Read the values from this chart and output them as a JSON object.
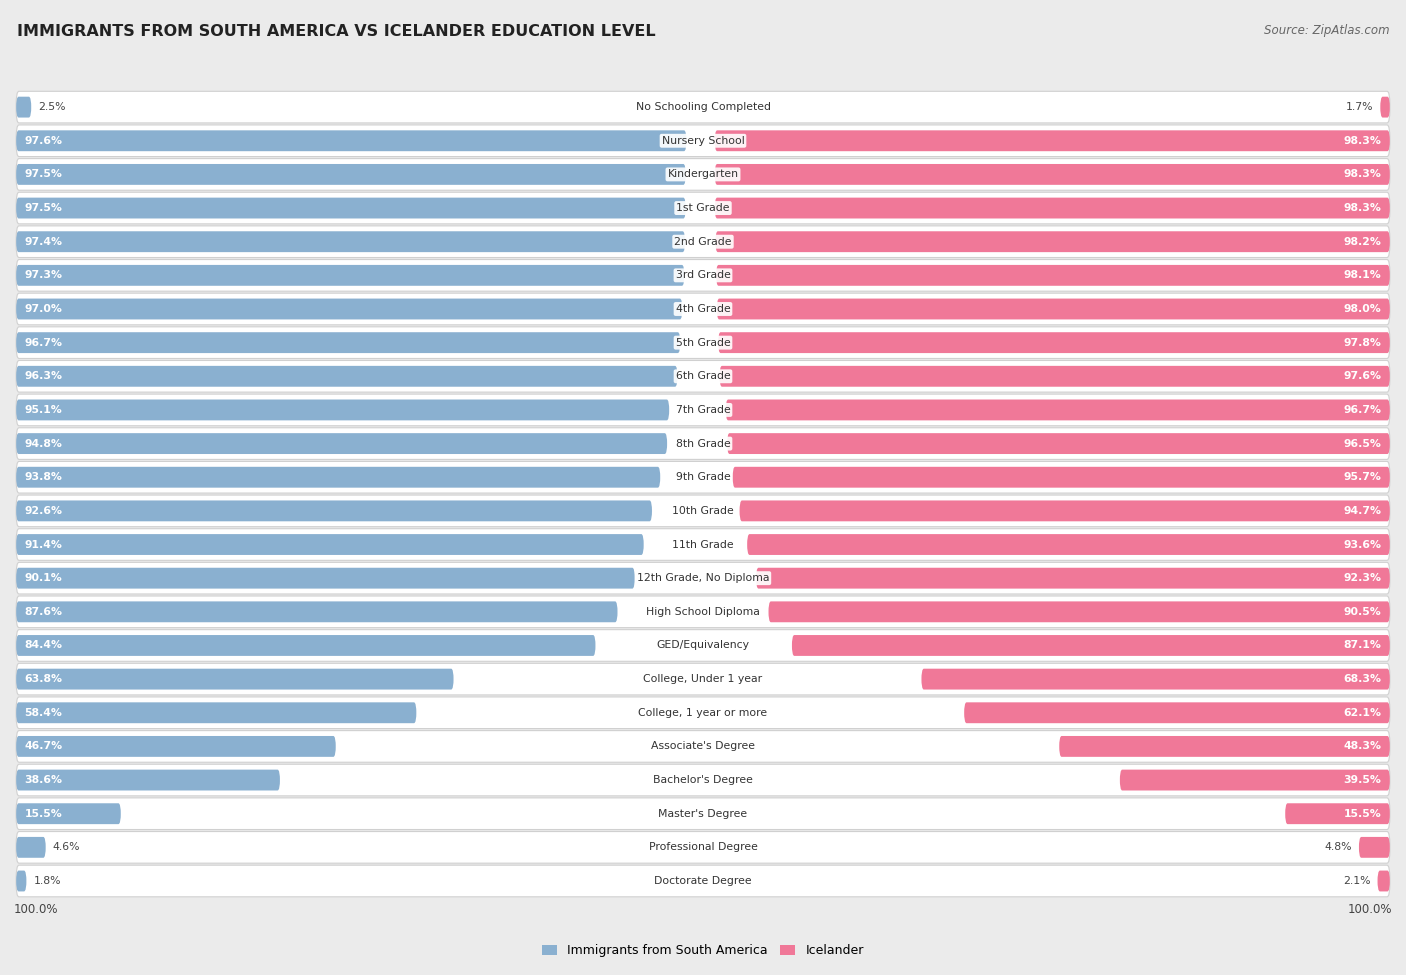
{
  "title": "IMMIGRANTS FROM SOUTH AMERICA VS ICELANDER EDUCATION LEVEL",
  "source": "Source: ZipAtlas.com",
  "categories": [
    "No Schooling Completed",
    "Nursery School",
    "Kindergarten",
    "1st Grade",
    "2nd Grade",
    "3rd Grade",
    "4th Grade",
    "5th Grade",
    "6th Grade",
    "7th Grade",
    "8th Grade",
    "9th Grade",
    "10th Grade",
    "11th Grade",
    "12th Grade, No Diploma",
    "High School Diploma",
    "GED/Equivalency",
    "College, Under 1 year",
    "College, 1 year or more",
    "Associate's Degree",
    "Bachelor's Degree",
    "Master's Degree",
    "Professional Degree",
    "Doctorate Degree"
  ],
  "south_america": [
    2.5,
    97.6,
    97.5,
    97.5,
    97.4,
    97.3,
    97.0,
    96.7,
    96.3,
    95.1,
    94.8,
    93.8,
    92.6,
    91.4,
    90.1,
    87.6,
    84.4,
    63.8,
    58.4,
    46.7,
    38.6,
    15.5,
    4.6,
    1.8
  ],
  "icelander": [
    1.7,
    98.3,
    98.3,
    98.3,
    98.2,
    98.1,
    98.0,
    97.8,
    97.6,
    96.7,
    96.5,
    95.7,
    94.7,
    93.6,
    92.3,
    90.5,
    87.1,
    68.3,
    62.1,
    48.3,
    39.5,
    15.5,
    4.8,
    2.1
  ],
  "blue_color": "#8ab0d0",
  "pink_color": "#f07898",
  "bg_color": "#ebebeb",
  "bar_bg_color": "#ffffff",
  "legend_blue": "Immigrants from South America",
  "legend_pink": "Icelander",
  "inside_threshold": 12.0
}
